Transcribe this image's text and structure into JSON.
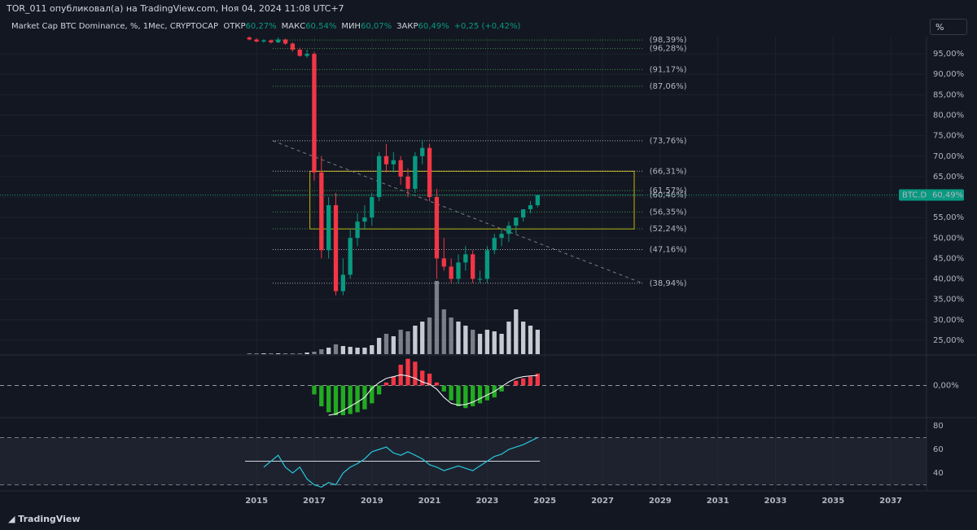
{
  "header": {
    "publisher": "TOR_011 опубликовал(а) на TradingView.com, Ноя 04, 2024 11:08 UTC+7",
    "symbol": "Market Cap BTC Dominance, %, 1Мес, CRYPTOCAP",
    "ohlc": [
      {
        "label": "ОТКР",
        "value": "60,27%"
      },
      {
        "label": "МАКС",
        "value": "60,54%"
      },
      {
        "label": "МИН",
        "value": "60,07%"
      },
      {
        "label": "ЗАКР",
        "value": "60,49%"
      }
    ],
    "change": "+0,25 (+0,42%)",
    "scale_button": "%"
  },
  "footer": {
    "brand": "TradingView"
  },
  "chart_data": {
    "type": "candlestick",
    "x": [
      2014.75,
      2015.0,
      2015.25,
      2015.5,
      2015.75,
      2016.0,
      2016.25,
      2016.5,
      2016.75,
      2017.0,
      2017.25,
      2017.5,
      2017.75,
      2018.0,
      2018.25,
      2018.5,
      2018.75,
      2019.0,
      2019.25,
      2019.5,
      2019.75,
      2020.0,
      2020.25,
      2020.5,
      2020.75,
      2021.0,
      2021.25,
      2021.5,
      2021.75,
      2022.0,
      2022.25,
      2022.5,
      2022.75,
      2023.0,
      2023.25,
      2023.5,
      2023.75,
      2024.0,
      2024.25,
      2024.5,
      2024.75
    ],
    "open": [
      99,
      98.5,
      98,
      98.3,
      97.8,
      98.5,
      97.5,
      96,
      94.5,
      95,
      66,
      47,
      58,
      37,
      41,
      50,
      54,
      55,
      60,
      70,
      68,
      69,
      65,
      62,
      70,
      72,
      60,
      45,
      43,
      40,
      44,
      46,
      40,
      40,
      47,
      50,
      51,
      53,
      55,
      57,
      58
    ],
    "high": [
      99.3,
      98.8,
      98.6,
      98.5,
      99,
      98.7,
      97.8,
      96.5,
      96,
      95.5,
      70,
      60,
      61,
      45,
      52,
      56,
      58,
      61,
      71,
      73,
      71,
      70,
      67,
      71,
      74,
      73,
      62,
      50,
      45,
      46,
      48,
      47,
      42,
      48,
      51,
      52,
      54,
      55,
      57,
      59,
      60.54
    ],
    "low": [
      98.3,
      97.8,
      97.7,
      97.5,
      97.6,
      97.2,
      95.5,
      94.3,
      94,
      64,
      45,
      45,
      36,
      36,
      40,
      48,
      52,
      53,
      59,
      66,
      66,
      63,
      60,
      61,
      68,
      59,
      40,
      42,
      39,
      39,
      42,
      39,
      39,
      39,
      46,
      48,
      49,
      51,
      54,
      56,
      57.5
    ],
    "close": [
      98.5,
      98,
      98.3,
      97.8,
      98.5,
      97.5,
      96,
      94.5,
      95,
      66,
      47,
      58,
      37,
      41,
      50,
      54,
      55,
      60,
      70,
      68,
      69,
      65,
      62,
      70,
      72,
      60,
      45,
      43,
      40,
      44,
      46,
      40,
      40,
      47,
      50,
      51,
      53,
      55,
      57,
      58,
      60.49
    ],
    "up_color": "#089981",
    "down_color": "#f23645",
    "volume": [
      1,
      1,
      1,
      1,
      1,
      1,
      1,
      1,
      2,
      3,
      6,
      8,
      12,
      10,
      9,
      8,
      8,
      11,
      20,
      25,
      22,
      30,
      28,
      35,
      40,
      45,
      90,
      55,
      45,
      40,
      35,
      30,
      25,
      30,
      28,
      25,
      40,
      55,
      40,
      35,
      30
    ],
    "volume_color": "#d1d4dc",
    "xlim": [
      2006.1,
      2038.24
    ],
    "xticks": [
      2015,
      2017,
      2019,
      2021,
      2023,
      2025,
      2027,
      2029,
      2031,
      2033,
      2035,
      2037
    ],
    "ylim": [
      21.6,
      99.2
    ],
    "yticks": [
      {
        "value": 25,
        "label": "25,00%"
      },
      {
        "value": 30,
        "label": "30,00%"
      },
      {
        "value": 35,
        "label": "35,00%"
      },
      {
        "value": 40,
        "label": "40,00%"
      },
      {
        "value": 45,
        "label": "45,00%"
      },
      {
        "value": 50,
        "label": "50,00%"
      },
      {
        "value": 55,
        "label": "55,00%"
      },
      {
        "value": 60,
        "label": "60,00%"
      },
      {
        "value": 65,
        "label": "65,00%"
      },
      {
        "value": 70,
        "label": "70,00%"
      },
      {
        "value": 75,
        "label": "75,00%"
      },
      {
        "value": 80,
        "label": "80,00%"
      },
      {
        "value": 85,
        "label": "85,00%"
      },
      {
        "value": 90,
        "label": "90,00%"
      },
      {
        "value": 95,
        "label": "95,00%"
      }
    ],
    "grid": true,
    "last_price": {
      "name": "BTC.D",
      "value": 60.49,
      "label": "60,49%",
      "color": "#089981"
    },
    "fib_levels": [
      {
        "value": 98.39,
        "label": "(98,39%)",
        "color": "#4caf50"
      },
      {
        "value": 96.28,
        "label": "(96,28%)",
        "color": "#4caf50"
      },
      {
        "value": 91.17,
        "label": "(91,17%)",
        "color": "#4caf50"
      },
      {
        "value": 87.06,
        "label": "(87,06%)",
        "color": "#4caf50"
      },
      {
        "value": 73.76,
        "label": "(73,76%)",
        "color": "#d1d4dc"
      },
      {
        "value": 66.31,
        "label": "(66,31%)",
        "color": "#d1d4dc"
      },
      {
        "value": 61.57,
        "label": "(61,57%)",
        "color": "#4caf50"
      },
      {
        "value": 60.46,
        "label": "(60,46%)",
        "color": "#4caf50"
      },
      {
        "value": 56.35,
        "label": "(56,35%)",
        "color": "#4caf50"
      },
      {
        "value": 52.24,
        "label": "(52,24%)",
        "color": "#4caf50"
      },
      {
        "value": 47.16,
        "label": "(47,16%)",
        "color": "#d1d4dc"
      },
      {
        "value": 38.94,
        "label": "(38,94%)",
        "color": "#d1d4dc"
      }
    ],
    "fib_x": [
      2015.56,
      2028.4
    ],
    "zone": {
      "x": [
        2016.85,
        2028.1
      ],
      "y": [
        52.2,
        66.3
      ],
      "color": "#c8b400"
    },
    "trendline": {
      "x": [
        2015.56,
        2028.4
      ],
      "y": [
        73.76,
        38.9
      ],
      "color": "#787b86"
    },
    "macd": {
      "hist": [
        null,
        null,
        null,
        null,
        null,
        null,
        null,
        null,
        null,
        -1.5,
        -3.5,
        -4.5,
        -5,
        -5,
        -4.8,
        -4.5,
        -4,
        -3,
        -1.5,
        0.5,
        1.5,
        3.5,
        4.5,
        4,
        2.5,
        2,
        0.5,
        -1,
        -2.5,
        -3.5,
        -3.8,
        -3.5,
        -3,
        -2.5,
        -2,
        -1,
        0,
        0.8,
        1.2,
        1.5,
        2
      ],
      "line": [
        null,
        null,
        null,
        null,
        null,
        null,
        null,
        null,
        null,
        null,
        null,
        -5,
        -4.8,
        -4.2,
        -3.5,
        -2.8,
        -2,
        -0.5,
        0.5,
        1.2,
        1.5,
        1.8,
        1.6,
        1.2,
        0.6,
        0.2,
        -0.6,
        -2,
        -3,
        -3.3,
        -3.2,
        -2.8,
        -2.2,
        -1.6,
        -1,
        -0.2,
        0.6,
        1.2,
        1.5,
        1.6,
        1.7
      ],
      "pos_color": "#f23645",
      "neg_color": "#22ab22",
      "line_color": "#ffffff",
      "ylim": [
        -5,
        5
      ],
      "yticks": [
        {
          "value": 0,
          "label": "0,00%"
        }
      ]
    },
    "rsi": {
      "values": [
        null,
        null,
        45,
        50,
        55,
        45,
        40,
        45,
        35,
        30,
        28,
        32,
        30,
        40,
        45,
        48,
        52,
        58,
        60,
        62,
        57,
        55,
        58,
        55,
        52,
        47,
        45,
        42,
        44,
        46,
        44,
        42,
        46,
        50,
        54,
        56,
        60,
        62,
        64,
        67,
        70
      ],
      "color": "#26c6da",
      "bands": [
        30,
        70
      ],
      "band_color": "#787b86",
      "hline": {
        "x": [
          2014.6,
          2024.83
        ],
        "y": 50
      },
      "ylim": [
        28.3,
        83.4
      ],
      "yticks": [
        40,
        60,
        80
      ]
    }
  }
}
